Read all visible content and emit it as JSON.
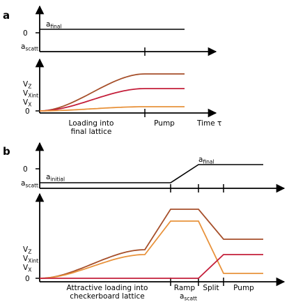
{
  "panel_a": {
    "label": "a",
    "axis_zero": "0",
    "a_final": {
      "base": "a",
      "sub": "final"
    },
    "a_scatt": {
      "base": "a",
      "sub": "scatt"
    },
    "v_labels": [
      {
        "base": "V",
        "sub": "Z",
        "color": "#a64f2a"
      },
      {
        "base": "V",
        "sub": "Xint",
        "color": "#e8923b"
      },
      {
        "base": "V",
        "sub": "X",
        "color": "#c41e3a"
      }
    ],
    "phases": [
      "Loading into",
      "final lattice",
      "Pump"
    ],
    "time_label": "Time τ"
  },
  "panel_b": {
    "label": "b",
    "axis_zero": "0",
    "a_final": {
      "base": "a",
      "sub": "final"
    },
    "a_initial": {
      "base": "a",
      "sub": "initial"
    },
    "a_scatt": {
      "base": "a",
      "sub": "scatt"
    },
    "v_labels": [
      {
        "base": "V",
        "sub": "Z",
        "color": "#a64f2a"
      },
      {
        "base": "V",
        "sub": "Xint",
        "color": "#e8923b"
      },
      {
        "base": "V",
        "sub": "X",
        "color": "#c41e3a"
      }
    ],
    "phases": [
      "Attractive loading into",
      "checkerboard lattice",
      "Ramp",
      "Split",
      "Pump"
    ],
    "ramp_sub": {
      "base": "a",
      "sub": "scatt"
    }
  },
  "colors": {
    "vz": "#a64f2a",
    "vxint": "#e8923b",
    "vx": "#c41e3a",
    "axis": "#000000"
  }
}
